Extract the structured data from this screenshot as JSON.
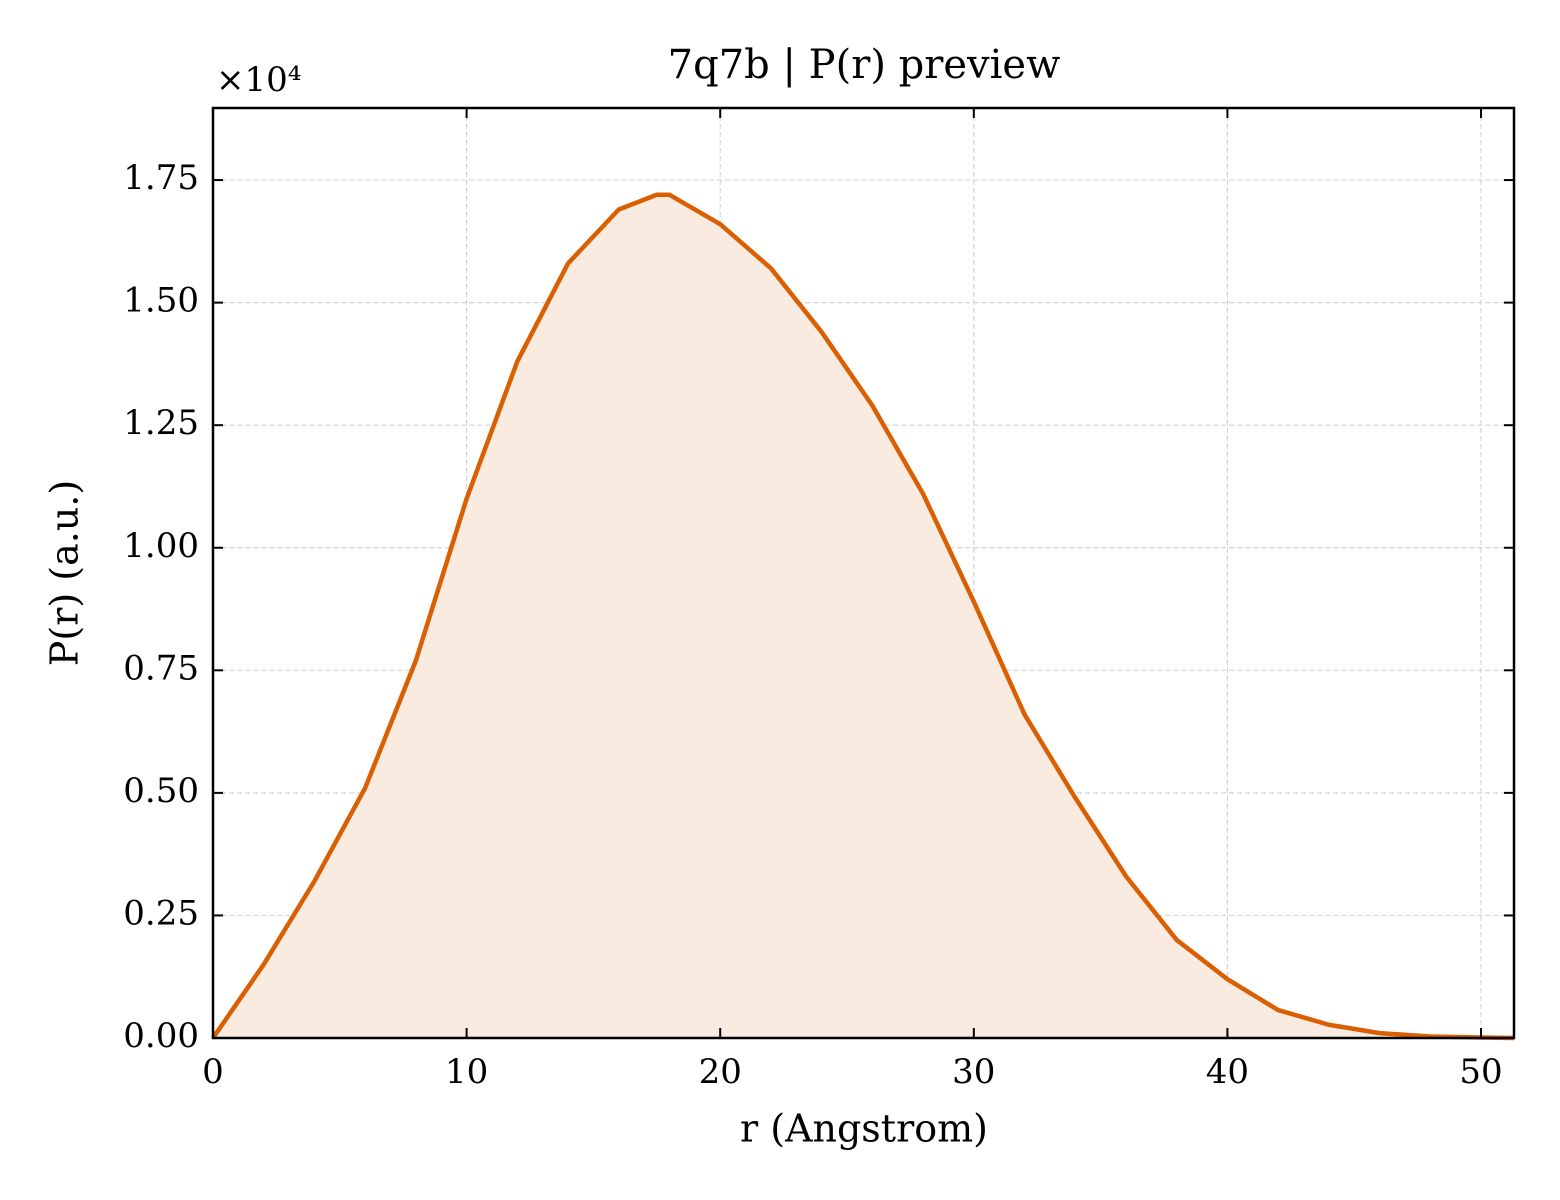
{
  "chart_data": {
    "type": "line",
    "title": "7q7b | P(r) preview",
    "xlabel": "r (Angstrom)",
    "ylabel": "P(r) (a.u.)",
    "y_offset_text": "×10⁴",
    "x": [
      0,
      2,
      4,
      6,
      8,
      10,
      12,
      14,
      16,
      17.5,
      18,
      20,
      22,
      24,
      26,
      28,
      30,
      32,
      34,
      36,
      38,
      40,
      42,
      44,
      46,
      48,
      50,
      51.3
    ],
    "series": [
      {
        "name": "P(r)",
        "color": "#d95f02",
        "fill": "#f9ebe0",
        "values": [
          0,
          0.15,
          0.32,
          0.51,
          0.77,
          1.1,
          1.38,
          1.58,
          1.69,
          1.72,
          1.72,
          1.66,
          1.57,
          1.44,
          1.29,
          1.11,
          0.89,
          0.66,
          0.49,
          0.33,
          0.2,
          0.12,
          0.057,
          0.027,
          0.01,
          0.003,
          0.001,
          0
        ]
      }
    ],
    "xlim": [
      0,
      51.3
    ],
    "xticks": [
      0,
      10,
      20,
      30,
      40,
      50
    ],
    "ylim": [
      0,
      1.897
    ],
    "yticks": [
      {
        "value": 0,
        "label": "0.00"
      },
      0.25,
      {
        "value": 0.5,
        "label": "0.50"
      },
      0.75,
      {
        "value": 1,
        "label": "1.00"
      },
      1.25,
      {
        "value": 1.5,
        "label": "1.50"
      },
      1.75
    ],
    "grid": true
  }
}
